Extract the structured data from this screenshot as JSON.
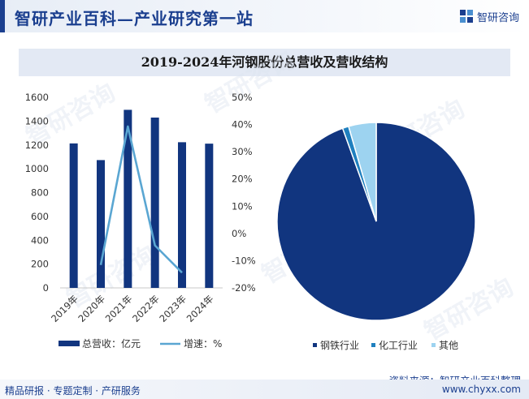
{
  "header": {
    "site_title": "智研产业百科—产业研究第一站",
    "logo_text": "智研咨询"
  },
  "chart_data": {
    "title": "2019-2024年河钢股份总营收及营收结构",
    "charts": [
      {
        "type": "bar+line",
        "categories": [
          "2019年",
          "2020年",
          "2021年",
          "2022年",
          "2023年",
          "2024年"
        ],
        "series": [
          {
            "name": "总营收：亿元",
            "type": "bar",
            "axis": "left",
            "color": "#11357f",
            "values": [
              1213,
              1073,
              1495,
              1430,
              1223,
              1211
            ]
          },
          {
            "name": "增速：%",
            "type": "line",
            "axis": "right",
            "color": "#5aa6d2",
            "values": [
              null,
              -11.6,
              39.3,
              -4.4,
              -14.4,
              null
            ]
          }
        ],
        "left_axis": {
          "range": [
            0,
            1600
          ],
          "ticks": [
            "0",
            "200",
            "400",
            "600",
            "800",
            "1000",
            "1200",
            "1400",
            "1600"
          ]
        },
        "right_axis": {
          "range": [
            -20,
            50
          ],
          "ticks": [
            "-20%",
            "-10%",
            "0%",
            "10%",
            "20%",
            "30%",
            "40%",
            "50%"
          ]
        },
        "grid": false,
        "legend": "bottom"
      },
      {
        "type": "pie",
        "slices": [
          {
            "name": "钢铁行业",
            "value": 94.5,
            "color": "#11357f"
          },
          {
            "name": "化工行业",
            "value": 1.0,
            "color": "#1f80bf"
          },
          {
            "name": "其他",
            "value": 4.5,
            "color": "#9dd3f0"
          }
        ],
        "legend": "bottom"
      }
    ]
  },
  "source": {
    "label": "资料来源：",
    "org": "智研产业百科整理"
  },
  "footer": {
    "tagline": "精品研报 · 专题定制 · 产研服务",
    "url": "www.chyxx.com"
  }
}
